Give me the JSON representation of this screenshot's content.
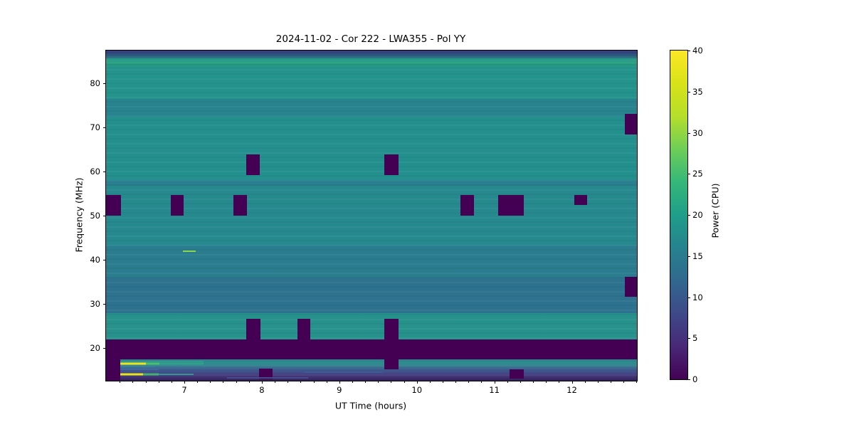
{
  "figure": {
    "background": "#ffffff"
  },
  "chart_data": {
    "type": "heatmap",
    "title": "2024-11-02 - Cor 222 - LWA355 - Pol YY",
    "xlabel": "UT Time (hours)",
    "ylabel": "Frequency (MHz)",
    "x_range": [
      5.99,
      12.84
    ],
    "y_range": [
      12.6,
      87.5
    ],
    "x_ticks": [
      7,
      8,
      9,
      10,
      11,
      12
    ],
    "x_minor_interval_hours": 0.1666667,
    "y_ticks": [
      20,
      30,
      40,
      50,
      60,
      70,
      80
    ],
    "grid": false,
    "flag_color": "#440154",
    "colorbar": {
      "label": "Power (CPU)",
      "min": 0,
      "max": 40,
      "ticks": [
        0,
        5,
        10,
        15,
        20,
        25,
        30,
        35,
        40
      ],
      "colormap": "viridis",
      "stops": [
        [
          0.0,
          "#440154"
        ],
        [
          0.1,
          "#482878"
        ],
        [
          0.2,
          "#3e4989"
        ],
        [
          0.3,
          "#31688e"
        ],
        [
          0.4,
          "#26828e"
        ],
        [
          0.5,
          "#1f9e89"
        ],
        [
          0.6,
          "#35b779"
        ],
        [
          0.7,
          "#6ece58"
        ],
        [
          0.8,
          "#b5de2b"
        ],
        [
          0.9,
          "#d8e219"
        ],
        [
          1.0,
          "#fde725"
        ]
      ]
    },
    "background_bands": [
      {
        "f": [
          85.7,
          87.5
        ],
        "colors": [
          "#312f7a",
          "#2a7a84"
        ]
      },
      {
        "f": [
          83.8,
          85.7
        ],
        "colors": [
          "#249a87"
        ]
      },
      {
        "f": [
          76.5,
          83.8
        ],
        "colors": [
          "#24938c"
        ]
      },
      {
        "f": [
          72.5,
          76.5
        ],
        "colors": [
          "#27838e"
        ]
      },
      {
        "f": [
          58.2,
          72.5
        ],
        "colors": [
          "#23908d"
        ]
      },
      {
        "f": [
          56.8,
          58.2
        ],
        "colors": [
          "#2a7f8e"
        ]
      },
      {
        "f": [
          43.2,
          56.8
        ],
        "colors": [
          "#25898e"
        ]
      },
      {
        "f": [
          36.0,
          43.2
        ],
        "colors": [
          "#2a7d8e"
        ]
      },
      {
        "f": [
          27.9,
          36.0
        ],
        "colors": [
          "#2d728e"
        ]
      },
      {
        "f": [
          22.0,
          27.9
        ],
        "colors": [
          "#27918b"
        ]
      },
      {
        "f": [
          17.4,
          22.0
        ],
        "colors": [
          "#440154"
        ]
      },
      {
        "f": [
          16.2,
          17.4
        ],
        "colors": [
          "#2d8a8d"
        ]
      },
      {
        "f": [
          12.6,
          16.2
        ],
        "colors": [
          "#35808f",
          "#3f5a90",
          "#453a7c",
          "#33205b"
        ]
      }
    ],
    "flagged_regions": [
      {
        "t": [
          5.99,
          12.84
        ],
        "f": [
          17.4,
          22.0
        ]
      },
      {
        "t": [
          5.99,
          6.18
        ],
        "f": [
          50.0,
          54.8
        ]
      },
      {
        "t": [
          6.83,
          6.99
        ],
        "f": [
          50.0,
          54.8
        ]
      },
      {
        "t": [
          7.63,
          7.81
        ],
        "f": [
          50.0,
          54.8
        ]
      },
      {
        "t": [
          7.8,
          7.97
        ],
        "f": [
          59.3,
          64.0
        ]
      },
      {
        "t": [
          9.58,
          9.76
        ],
        "f": [
          59.3,
          64.0
        ]
      },
      {
        "t": [
          10.56,
          10.74
        ],
        "f": [
          50.0,
          54.8
        ]
      },
      {
        "t": [
          11.05,
          11.38
        ],
        "f": [
          50.0,
          54.8
        ]
      },
      {
        "t": [
          12.03,
          12.2
        ],
        "f": [
          52.4,
          54.8
        ]
      },
      {
        "t": [
          12.68,
          12.84
        ],
        "f": [
          68.5,
          73.2
        ]
      },
      {
        "t": [
          12.68,
          12.84
        ],
        "f": [
          31.6,
          36.1
        ]
      },
      {
        "t": [
          7.8,
          7.98
        ],
        "f": [
          22.0,
          26.7
        ]
      },
      {
        "t": [
          8.46,
          8.63
        ],
        "f": [
          22.0,
          26.7
        ]
      },
      {
        "t": [
          9.58,
          9.76
        ],
        "f": [
          15.2,
          26.7
        ]
      },
      {
        "t": [
          7.96,
          8.14
        ],
        "f": [
          12.9,
          15.3
        ]
      },
      {
        "t": [
          11.2,
          11.38
        ],
        "f": [
          13.1,
          15.2
        ]
      },
      {
        "t": [
          5.99,
          6.17
        ],
        "f": [
          12.6,
          22.0
        ]
      }
    ],
    "bright_lines": [
      {
        "t": [
          5.99,
          12.84
        ],
        "f": 84.7,
        "px": 3,
        "color": "#2fa383"
      },
      {
        "t": [
          6.98,
          7.15
        ],
        "f": 42.0,
        "px": 2,
        "color": "#8bd64a"
      },
      {
        "t": [
          6.17,
          7.25
        ],
        "f": 17.0,
        "px": 2,
        "color": "#2f9a8d"
      },
      {
        "t": [
          6.17,
          6.5
        ],
        "f": 16.55,
        "px": 3,
        "color": "#efe51d"
      },
      {
        "t": [
          6.5,
          6.68
        ],
        "f": 16.55,
        "px": 3,
        "color": "#49c16d"
      },
      {
        "t": [
          6.68,
          7.25
        ],
        "f": 16.55,
        "px": 3,
        "color": "#2fa18b"
      },
      {
        "t": [
          6.17,
          6.62
        ],
        "f": 15.8,
        "px": 2,
        "color": "#3d7d9c"
      },
      {
        "t": [
          6.17,
          6.67
        ],
        "f": 15.2,
        "px": 2,
        "color": "#41689a"
      },
      {
        "t": [
          6.17,
          6.47
        ],
        "f": 14.05,
        "px": 3,
        "color": "#e8e41a"
      },
      {
        "t": [
          6.47,
          6.67
        ],
        "f": 14.05,
        "px": 3,
        "color": "#41b173"
      },
      {
        "t": [
          6.67,
          7.12
        ],
        "f": 14.05,
        "px": 2,
        "color": "#31968c"
      },
      {
        "t": [
          7.55,
          8.6
        ],
        "f": 13.3,
        "px": 2,
        "color": "#474b8c"
      },
      {
        "t": [
          8.55,
          9.55
        ],
        "f": 14.6,
        "px": 2,
        "color": "#3f5a94"
      }
    ]
  }
}
